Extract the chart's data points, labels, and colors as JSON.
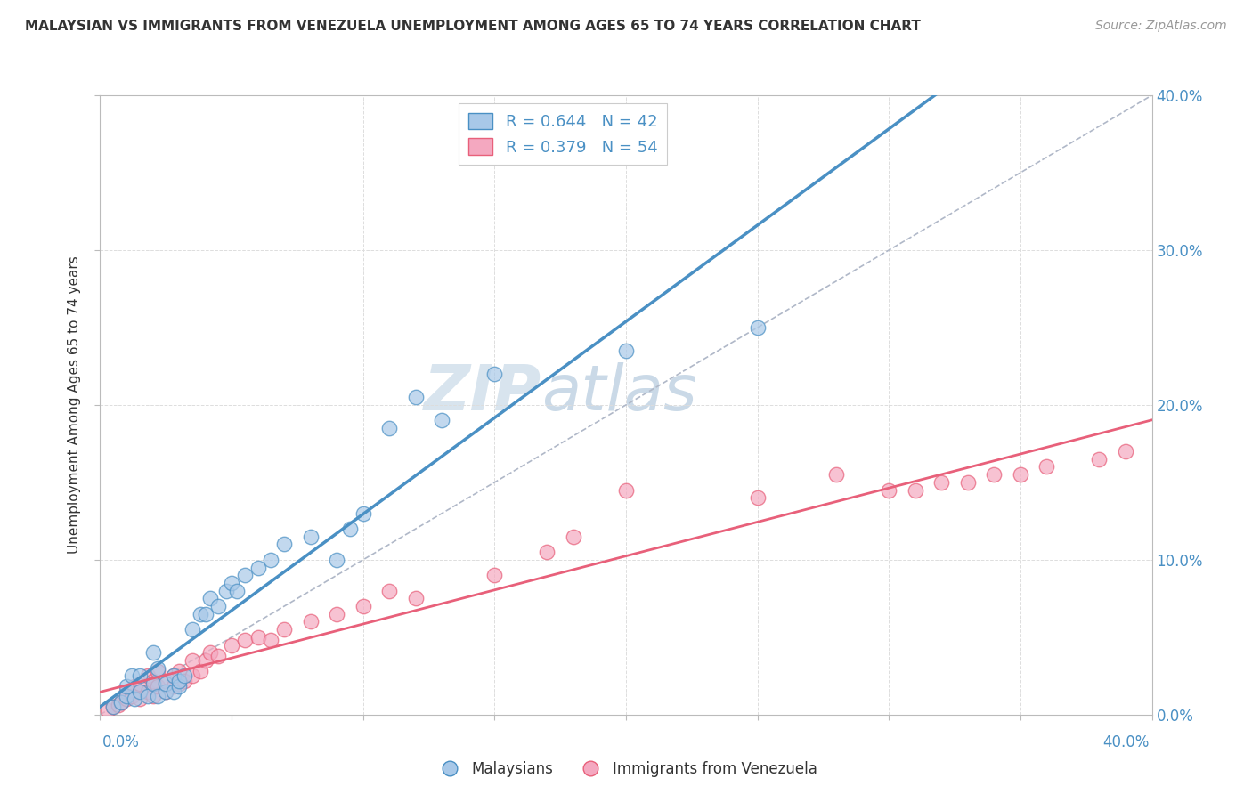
{
  "title": "MALAYSIAN VS IMMIGRANTS FROM VENEZUELA UNEMPLOYMENT AMONG AGES 65 TO 74 YEARS CORRELATION CHART",
  "source": "Source: ZipAtlas.com",
  "ylabel": "Unemployment Among Ages 65 to 74 years",
  "ytick_values": [
    0.0,
    0.1,
    0.2,
    0.3,
    0.4
  ],
  "xlim": [
    0.0,
    0.4
  ],
  "ylim": [
    0.0,
    0.4
  ],
  "legend_label1": "Malaysians",
  "legend_label2": "Immigrants from Venezuela",
  "legend_R1": "R = 0.644",
  "legend_N1": "N = 42",
  "legend_R2": "R = 0.379",
  "legend_N2": "N = 54",
  "watermark1": "ZIP",
  "watermark2": "atlas",
  "color_blue": "#a8c8e8",
  "color_pink": "#f4a8c0",
  "color_blue_line": "#4a90c4",
  "color_pink_line": "#e8607a",
  "color_dashed": "#b0b8c8",
  "color_text_blue": "#4a90c4",
  "malaysians_x": [
    0.005,
    0.008,
    0.01,
    0.01,
    0.012,
    0.013,
    0.015,
    0.015,
    0.018,
    0.02,
    0.02,
    0.022,
    0.022,
    0.025,
    0.025,
    0.028,
    0.028,
    0.03,
    0.03,
    0.032,
    0.035,
    0.038,
    0.04,
    0.042,
    0.045,
    0.048,
    0.05,
    0.052,
    0.055,
    0.06,
    0.065,
    0.07,
    0.08,
    0.09,
    0.095,
    0.1,
    0.11,
    0.12,
    0.13,
    0.15,
    0.2,
    0.25
  ],
  "malaysians_y": [
    0.005,
    0.008,
    0.012,
    0.018,
    0.025,
    0.01,
    0.015,
    0.025,
    0.012,
    0.02,
    0.04,
    0.012,
    0.03,
    0.015,
    0.02,
    0.015,
    0.025,
    0.018,
    0.022,
    0.025,
    0.055,
    0.065,
    0.065,
    0.075,
    0.07,
    0.08,
    0.085,
    0.08,
    0.09,
    0.095,
    0.1,
    0.11,
    0.115,
    0.1,
    0.12,
    0.13,
    0.185,
    0.205,
    0.19,
    0.22,
    0.235,
    0.25
  ],
  "venezuela_x": [
    0.003,
    0.005,
    0.007,
    0.008,
    0.01,
    0.01,
    0.012,
    0.013,
    0.015,
    0.015,
    0.018,
    0.018,
    0.02,
    0.02,
    0.022,
    0.022,
    0.025,
    0.025,
    0.028,
    0.028,
    0.03,
    0.03,
    0.032,
    0.035,
    0.035,
    0.038,
    0.04,
    0.042,
    0.045,
    0.05,
    0.055,
    0.06,
    0.065,
    0.07,
    0.08,
    0.09,
    0.1,
    0.11,
    0.12,
    0.15,
    0.17,
    0.18,
    0.2,
    0.25,
    0.28,
    0.3,
    0.31,
    0.32,
    0.33,
    0.34,
    0.35,
    0.36,
    0.38,
    0.39
  ],
  "venezuela_y": [
    0.003,
    0.005,
    0.006,
    0.008,
    0.01,
    0.015,
    0.012,
    0.018,
    0.01,
    0.02,
    0.015,
    0.025,
    0.012,
    0.022,
    0.018,
    0.028,
    0.015,
    0.022,
    0.018,
    0.025,
    0.02,
    0.028,
    0.022,
    0.025,
    0.035,
    0.028,
    0.035,
    0.04,
    0.038,
    0.045,
    0.048,
    0.05,
    0.048,
    0.055,
    0.06,
    0.065,
    0.07,
    0.08,
    0.075,
    0.09,
    0.105,
    0.115,
    0.145,
    0.14,
    0.155,
    0.145,
    0.145,
    0.15,
    0.15,
    0.155,
    0.155,
    0.16,
    0.165,
    0.17
  ]
}
